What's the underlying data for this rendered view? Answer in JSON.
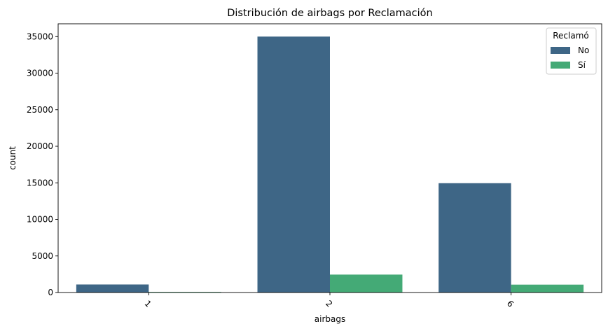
{
  "chart_data": {
    "type": "bar",
    "title": "Distribución de airbags por Reclamación",
    "xlabel": "airbags",
    "ylabel": "count",
    "categories": [
      "1",
      "2",
      "6"
    ],
    "series": [
      {
        "name": "No",
        "color": "#3e6686",
        "values": [
          1100,
          35000,
          14950
        ]
      },
      {
        "name": "Sí",
        "color": "#44aa76",
        "values": [
          80,
          2450,
          1080
        ]
      }
    ],
    "ylim": [
      0,
      36750
    ],
    "yticks": [
      0,
      5000,
      10000,
      15000,
      20000,
      25000,
      30000,
      35000
    ],
    "legend": {
      "title": "Reclamó",
      "placement": "top-right"
    },
    "grid": false
  }
}
